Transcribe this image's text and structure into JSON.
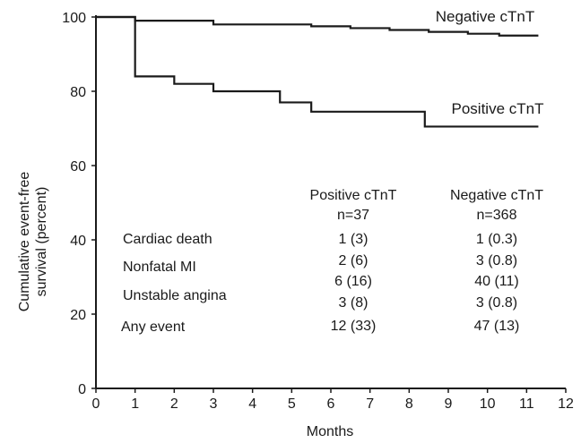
{
  "chart_data": {
    "type": "line",
    "xlabel": "Months",
    "ylabel": "Cumulative event-free survival (percent)",
    "ylabel_lines": [
      "Cumulative event-free",
      "survival (percent)"
    ],
    "xlim": [
      0,
      12
    ],
    "ylim": [
      0,
      100
    ],
    "xticks": [
      0,
      1,
      2,
      3,
      4,
      5,
      6,
      7,
      8,
      9,
      10,
      11,
      12
    ],
    "yticks": [
      0,
      20,
      40,
      60,
      80,
      100
    ],
    "grid": false,
    "legend": "inline",
    "series": [
      {
        "name": "Negative cTnT",
        "step": true,
        "x": [
          0,
          1,
          2,
          3,
          5,
          5.5,
          6.5,
          7.5,
          8.5,
          9.5,
          10.3,
          11.3
        ],
        "y": [
          100,
          99,
          99,
          98,
          98,
          97.5,
          97,
          96.5,
          96,
          95.5,
          95,
          95
        ]
      },
      {
        "name": "Positive cTnT",
        "step": true,
        "x": [
          0,
          1,
          2,
          3,
          4.7,
          5.5,
          8.4,
          11.3
        ],
        "y": [
          100,
          84,
          82,
          80,
          77,
          74.5,
          70.5,
          70.5
        ]
      }
    ],
    "table": {
      "headers": [
        {
          "label": "Positive cTnT",
          "n": "n=37"
        },
        {
          "label": "Negative cTnT",
          "n": "n=368"
        }
      ],
      "rows": [
        {
          "label": "Cardiac death",
          "values": [
            "1 (3)",
            "1 (0.3)"
          ]
        },
        {
          "label": "Nonfatal MI",
          "values": [
            "2 (6)",
            "3 (0.8)"
          ]
        },
        {
          "label": "",
          "values": [
            "6 (16)",
            "40 (11)"
          ]
        },
        {
          "label": "Unstable angina",
          "values": [
            "3 (8)",
            "3 (0.8)"
          ]
        },
        {
          "label": "Any event",
          "values": [
            "12 (33)",
            "47 (13)"
          ]
        }
      ]
    }
  }
}
